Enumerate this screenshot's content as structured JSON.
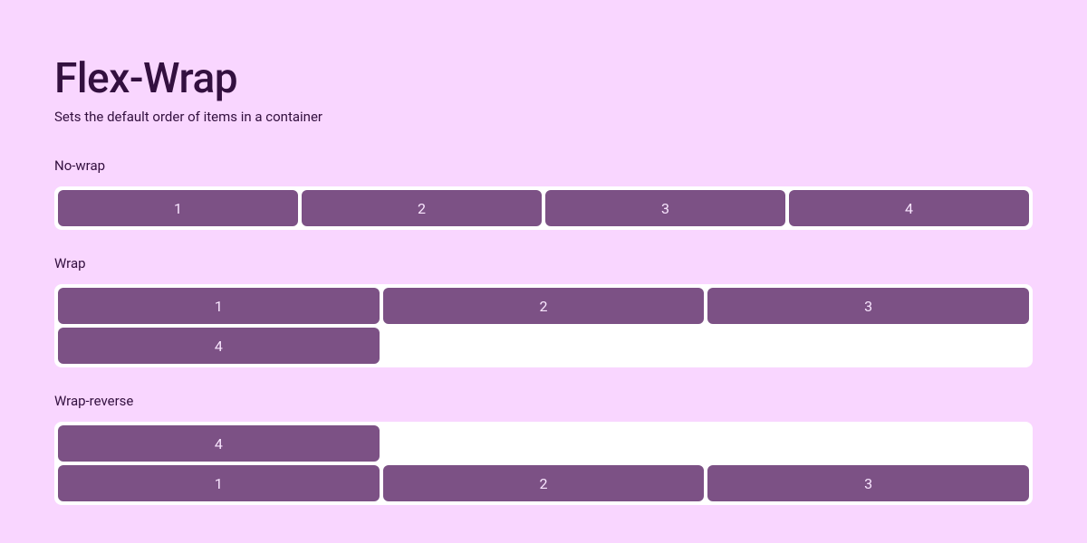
{
  "page": {
    "title": "Flex-Wrap",
    "subtitle": "Sets the default order of items in a container",
    "background_color": "#f9d6ff",
    "text_color": "#33103f"
  },
  "container": {
    "background_color": "#ffffff",
    "border_radius": 8
  },
  "item": {
    "background_color": "#7c5185",
    "text_color": "#f9e6ff",
    "border_radius": 6,
    "height": 40,
    "font_size": 16
  },
  "sections": {
    "nowrap": {
      "label": "No-wrap",
      "items": [
        "1",
        "2",
        "3",
        "4"
      ]
    },
    "wrap": {
      "label": "Wrap",
      "items": [
        "1",
        "2",
        "3",
        "4"
      ]
    },
    "wrap_reverse": {
      "label": "Wrap-reverse",
      "items": [
        "1",
        "2",
        "3",
        "4"
      ]
    }
  }
}
